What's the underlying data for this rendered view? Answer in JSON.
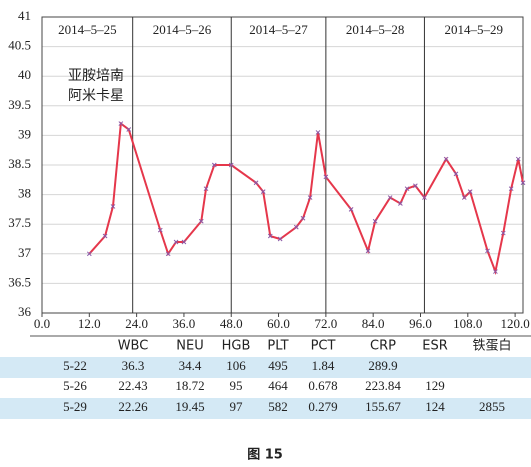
{
  "chart_data": {
    "type": "line",
    "x": [
      12,
      16,
      18,
      20,
      22,
      30,
      32,
      34,
      36,
      40.4,
      41.6,
      43.7,
      48,
      54.3,
      56.1,
      57.9,
      60.4,
      64.5,
      66.2,
      68,
      70,
      72,
      78.4,
      82.7,
      84.5,
      88.3,
      90.9,
      92.6,
      94.7,
      97,
      102.5,
      105,
      107.1,
      108.6,
      113,
      115,
      117,
      119,
      120.8,
      122
    ],
    "series": [
      {
        "color": "#e5374b",
        "marker_color": "#8a5aa8",
        "values": [
          37.0,
          37.3,
          37.8,
          39.2,
          39.1,
          37.4,
          37.0,
          37.2,
          37.2,
          37.55,
          38.1,
          38.5,
          38.5,
          38.2,
          38.05,
          37.3,
          37.25,
          37.45,
          37.6,
          37.95,
          39.05,
          38.3,
          37.75,
          37.05,
          37.55,
          37.95,
          37.85,
          38.1,
          38.15,
          37.95,
          38.6,
          38.35,
          37.95,
          38.05,
          37.05,
          36.7,
          37.35,
          38.1,
          38.6,
          38.2
        ]
      }
    ],
    "xlim": [
      0,
      122
    ],
    "xticks": [
      {
        "value": 0,
        "label": "0.0"
      },
      {
        "value": 12,
        "label": "12.0"
      },
      {
        "value": 24,
        "label": "24.0"
      },
      {
        "value": 36,
        "label": "36.0"
      },
      {
        "value": 48,
        "label": "48.0"
      },
      {
        "value": 60,
        "label": "60.0"
      },
      {
        "value": 72,
        "label": "72.0"
      },
      {
        "value": 84,
        "label": "84.0"
      },
      {
        "value": 96,
        "label": "96.0"
      },
      {
        "value": 108,
        "label": "108.0"
      },
      {
        "value": 120,
        "label": "120.0"
      }
    ],
    "ylim": [
      36,
      41
    ],
    "yticks": [
      36,
      36.5,
      37,
      37.5,
      38,
      38.5,
      39,
      39.5,
      40,
      40.5,
      41
    ],
    "grid": true,
    "date_lines": [
      23,
      48,
      72,
      97
    ],
    "date_labels": [
      "2014–5–25",
      "2014–5–26",
      "2014–5–27",
      "2014–5–28",
      "2014–5–29"
    ],
    "annotation": [
      "亚胺培南",
      "阿米卡星"
    ]
  },
  "table": {
    "columns": [
      "WBC",
      "NEU",
      "HGB",
      "PLT",
      "PCT",
      "CRP",
      "ESR",
      "铁蛋白"
    ],
    "rows": [
      [
        "5-22",
        36.3,
        34.4,
        106,
        495,
        1.84,
        289.9,
        null,
        null
      ],
      [
        "5-26",
        22.43,
        18.72,
        95,
        464,
        0.678,
        223.84,
        129,
        null
      ],
      [
        "5-29",
        22.26,
        19.45,
        97,
        582,
        0.279,
        155.67,
        124,
        2855
      ]
    ]
  },
  "caption": "图 15"
}
